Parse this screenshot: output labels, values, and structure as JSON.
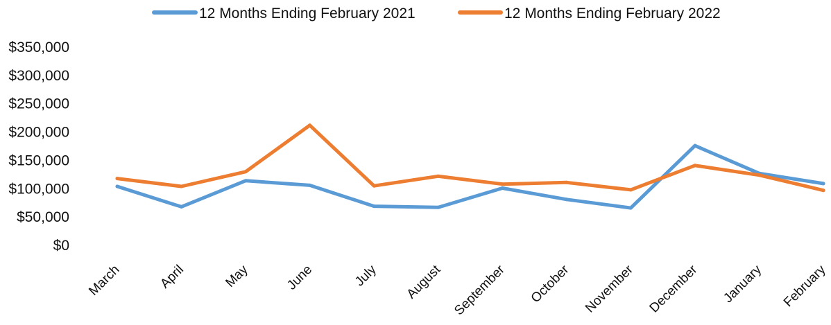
{
  "chart_data": {
    "type": "line",
    "categories": [
      "March",
      "April",
      "May",
      "June",
      "July",
      "August",
      "September",
      "October",
      "November",
      "December",
      "January",
      "February"
    ],
    "series": [
      {
        "name": "12 Months Ending February 2021",
        "color": "#5B9BD5",
        "values": [
          104000,
          68000,
          114000,
          106000,
          69000,
          67000,
          101000,
          81000,
          66000,
          176000,
          127000,
          109000
        ]
      },
      {
        "name": "12 Months Ending February 2022",
        "color": "#ED7D31",
        "values": [
          118000,
          104000,
          130000,
          212000,
          105000,
          122000,
          108000,
          111000,
          98000,
          141000,
          124000,
          97000
        ]
      }
    ],
    "y_ticks": [
      "$0",
      "$50,000",
      "$100,000",
      "$150,000",
      "$200,000",
      "$250,000",
      "$300,000",
      "$350,000"
    ],
    "ylim": [
      0,
      350000
    ],
    "grid": false,
    "legend_position": "top"
  }
}
